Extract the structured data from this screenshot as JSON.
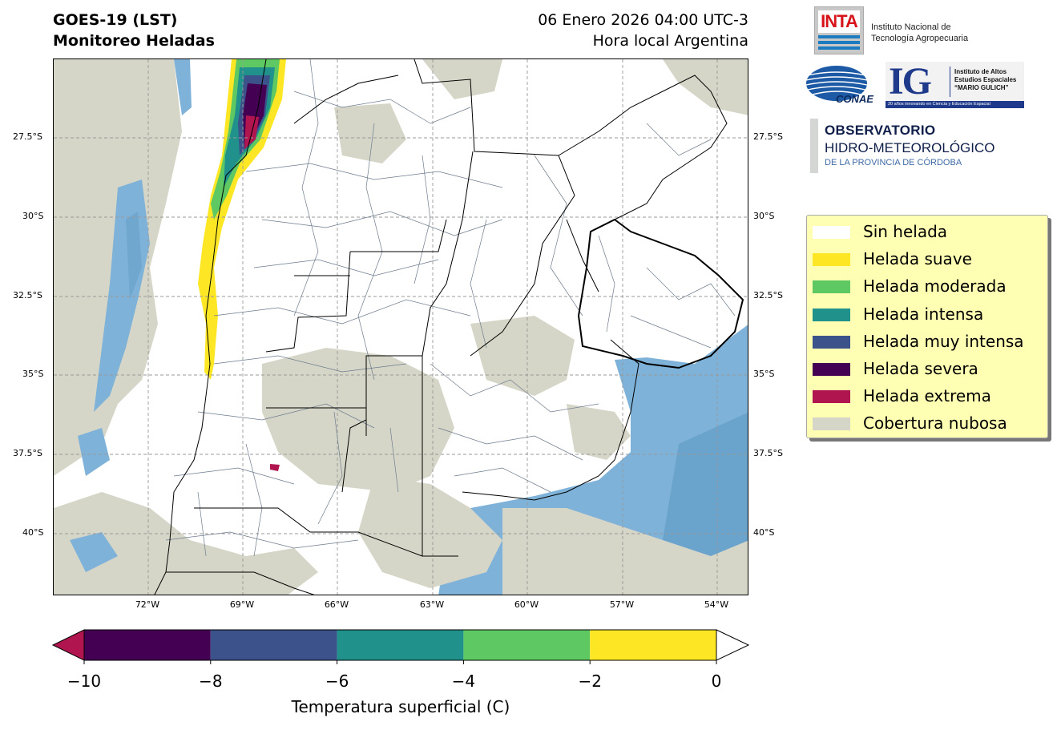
{
  "header": {
    "title_line1": "GOES-19 (LST)",
    "title_line2": "Monitoreo Heladas",
    "date_line1": "06 Enero 2026 04:00 UTC-3",
    "date_line2": "Hora local Argentina"
  },
  "map": {
    "lat_labels_left": [
      "27.5°S",
      "30°S",
      "32.5°S",
      "35°S",
      "37.5°S",
      "40°S"
    ],
    "lat_labels_right": [
      "27.5°S",
      "30°S",
      "32.5°S",
      "35°S",
      "37.5°S",
      "40°S"
    ],
    "lon_labels": [
      "72°W",
      "69°W",
      "66°W",
      "63°W",
      "60°W",
      "57°W",
      "54°W"
    ],
    "colors": {
      "land": "#ffffff",
      "cloud": "#d6d6c8",
      "water": "#7fb2d8",
      "water_deep": "#6aa3cc",
      "border": "#000000",
      "department_border": "#6b7b8c"
    }
  },
  "logos": {
    "inta_word": "INTA",
    "inta_line1": "Instituto Nacional de",
    "inta_line2": "Tecnología Agropecuaria",
    "conae_word": "CONAE",
    "ig_letters": "IG",
    "ig_line1": "Instituto de Altos",
    "ig_line2": "Estudios Espaciales",
    "ig_line3": "“MARIO GULICH”",
    "ig_bar": "20 años innovando en Ciencia y Educación Espacial",
    "obs_line1": "OBSERVATORIO",
    "obs_line2": "HIDRO-METEOROLÓGICO",
    "obs_line3": "DE LA PROVINCIA DE CÓRDOBA"
  },
  "legend": {
    "items": [
      {
        "label": "Sin helada",
        "color": "#ffffff"
      },
      {
        "label": "Helada suave",
        "color": "#fde725"
      },
      {
        "label": "Helada moderada",
        "color": "#5ec962"
      },
      {
        "label": "Helada intensa",
        "color": "#21918c"
      },
      {
        "label": "Helada muy intensa",
        "color": "#3b528b"
      },
      {
        "label": "Helada severa",
        "color": "#440154"
      },
      {
        "label": "Helada extrema",
        "color": "#b0154f"
      },
      {
        "label": "Cobertura nubosa",
        "color": "#d6d6c8"
      }
    ]
  },
  "colorbar": {
    "label": "Temperatura superficial (C)",
    "ticks": [
      "−10",
      "−8",
      "−6",
      "−4",
      "−2",
      "0"
    ],
    "segments": [
      {
        "from": -10,
        "to": -8,
        "color": "#440154"
      },
      {
        "from": -8,
        "to": -6,
        "color": "#3b528b"
      },
      {
        "from": -6,
        "to": -4,
        "color": "#21918c"
      },
      {
        "from": -4,
        "to": -2,
        "color": "#5ec962"
      },
      {
        "from": -2,
        "to": 0,
        "color": "#fde725"
      }
    ],
    "under_color": "#b0154f",
    "over_color": "#ffffff"
  }
}
